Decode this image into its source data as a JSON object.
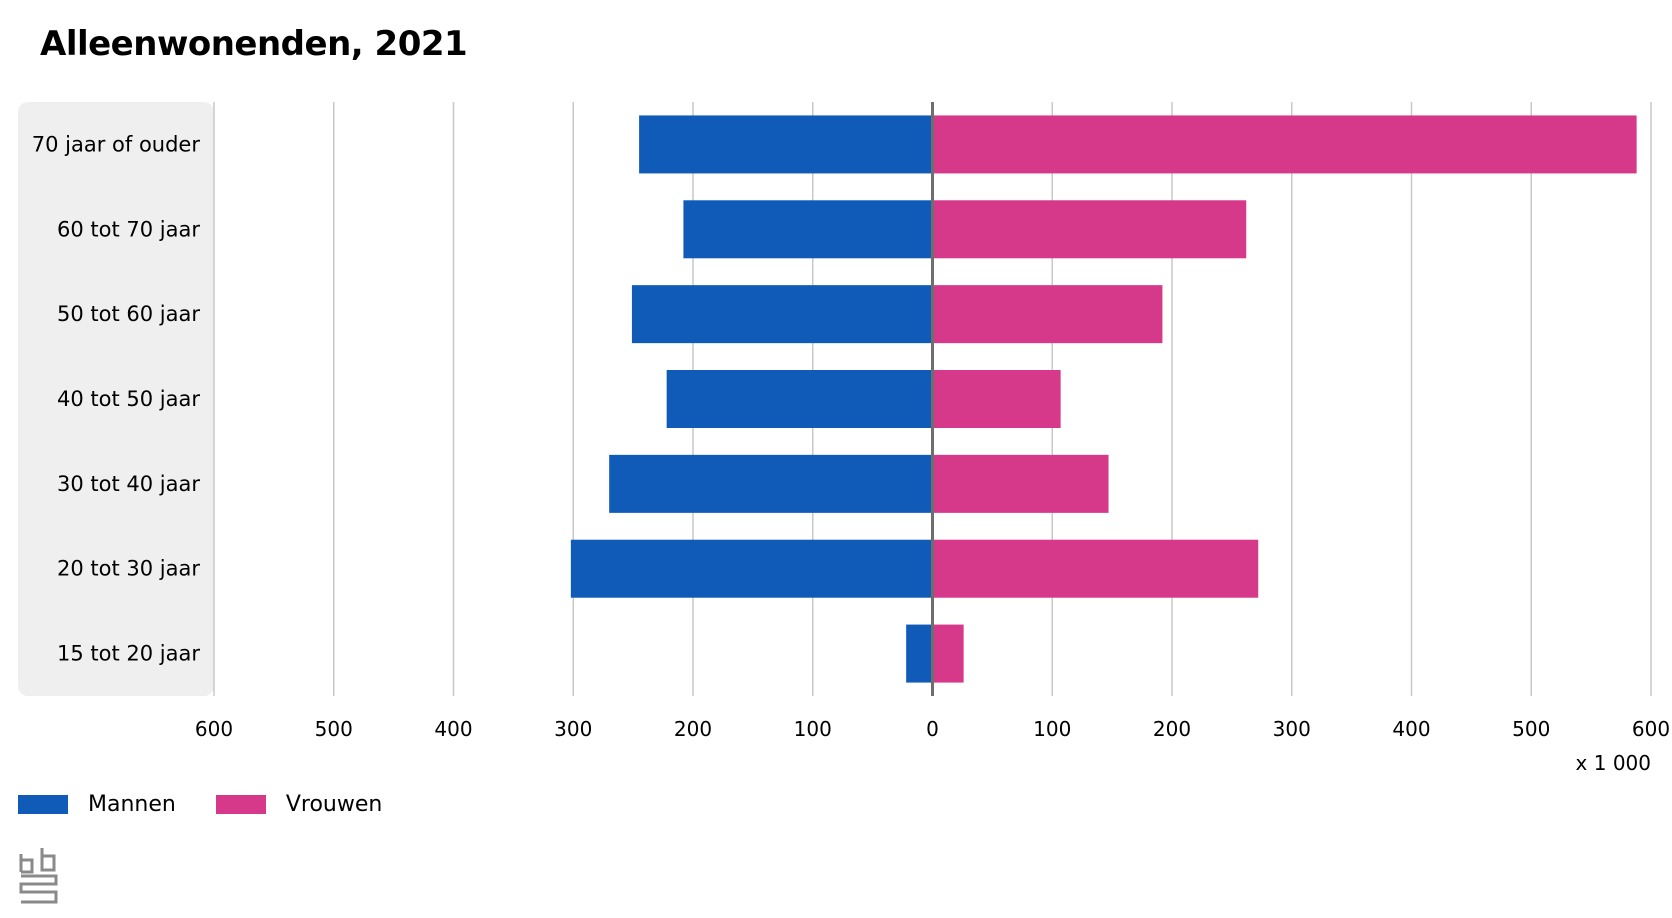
{
  "chart_data": {
    "type": "bar",
    "orientation": "horizontal-diverging",
    "title": "Alleenwonenden, 2021",
    "categories": [
      "70 jaar of ouder",
      "60 tot 70 jaar",
      "50 tot 60 jaar",
      "40 tot 50 jaar",
      "30 tot 40 jaar",
      "20 tot 30 jaar",
      "15 tot 20 jaar"
    ],
    "series": [
      {
        "name": "Mannen",
        "color": "#0f5bb7",
        "values": [
          245,
          208,
          251,
          222,
          270,
          302,
          22
        ]
      },
      {
        "name": "Vrouwen",
        "color": "#d6388a",
        "values": [
          588,
          262,
          192,
          107,
          147,
          272,
          26
        ]
      }
    ],
    "xlim": [
      -600,
      600
    ],
    "xticks": [
      -600,
      -500,
      -400,
      -300,
      -200,
      -100,
      0,
      100,
      200,
      300,
      400,
      500,
      600
    ],
    "xtick_labels": [
      "600",
      "500",
      "400",
      "300",
      "200",
      "100",
      "0",
      "100",
      "200",
      "300",
      "400",
      "500",
      "600"
    ],
    "unit_label": "x 1 000",
    "grid": true,
    "legend_position": "bottom-left"
  },
  "branding": {
    "logo_icon": "cbs-logo"
  }
}
